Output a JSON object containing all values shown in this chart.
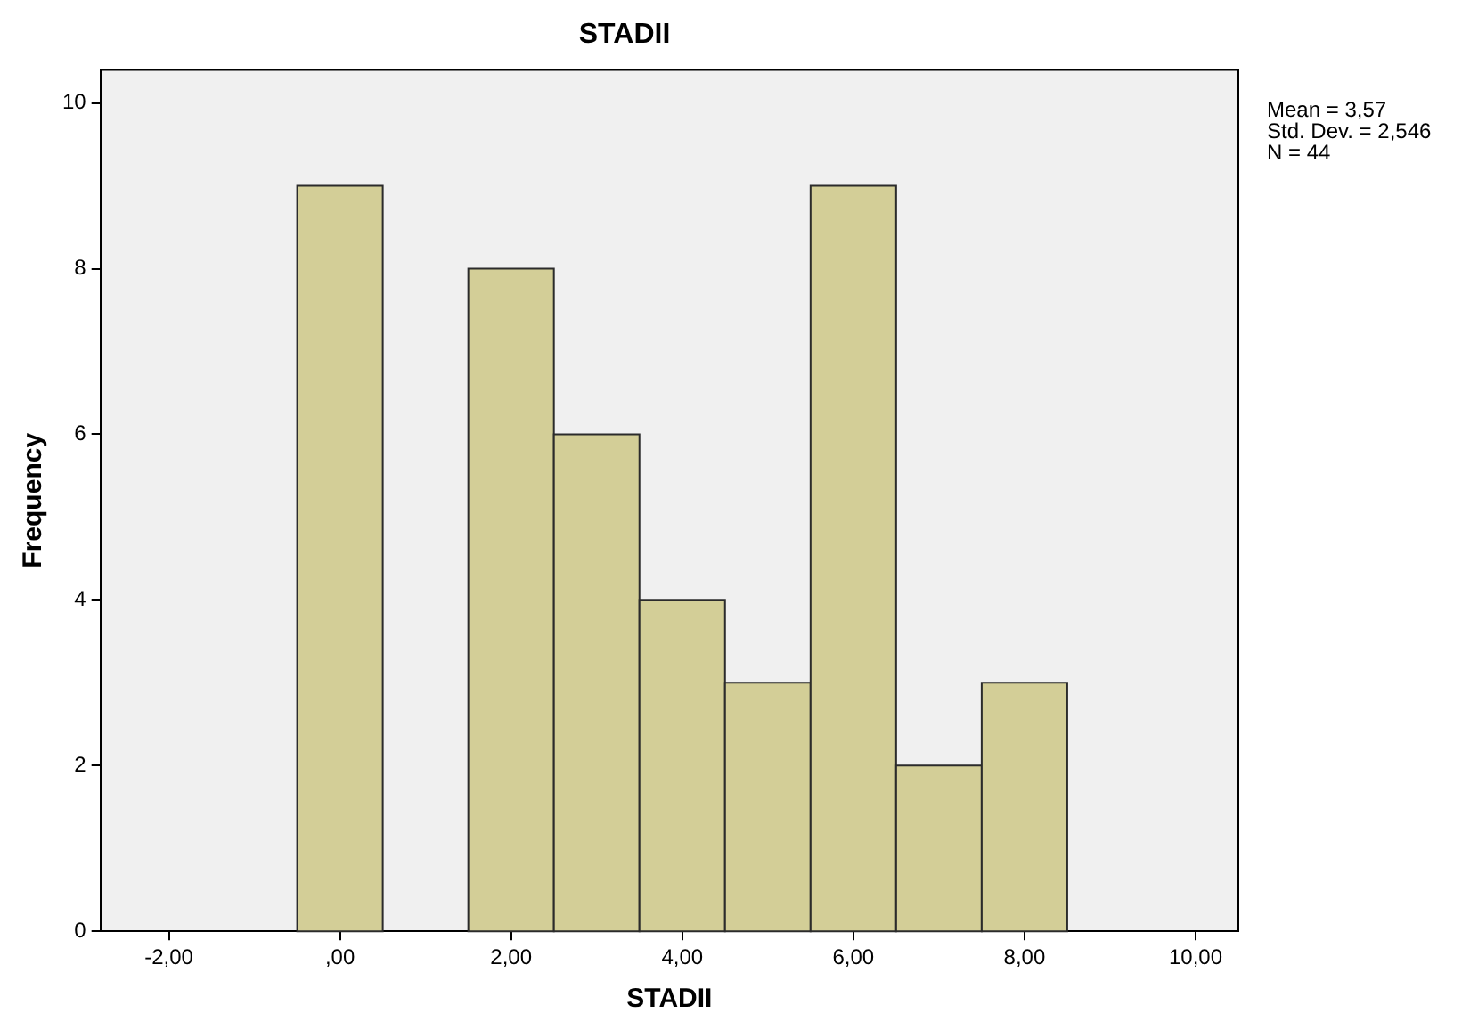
{
  "chart_data": {
    "type": "histogram",
    "title": "STADII",
    "xlabel": "STADII",
    "ylabel": "Frequency",
    "bins": [
      -0.5,
      0.5,
      1.5,
      2.5,
      3.5,
      4.5,
      5.5,
      6.5,
      7.5,
      8.5
    ],
    "values": [
      9,
      0,
      8,
      6,
      4,
      3,
      9,
      2,
      3
    ],
    "color": "#d3ce97",
    "xlim": [
      -2.8,
      10.5
    ],
    "xticks": [
      {
        "value": -2,
        "label": "-2,00"
      },
      {
        "value": 0,
        "label": ",00"
      },
      {
        "value": 2,
        "label": "2,00"
      },
      {
        "value": 4,
        "label": "4,00"
      },
      {
        "value": 6,
        "label": "6,00"
      },
      {
        "value": 8,
        "label": "8,00"
      },
      {
        "value": 10,
        "label": "10,00"
      }
    ],
    "ylim": [
      0,
      10.4
    ],
    "yticks": [
      0,
      2,
      4,
      6,
      8,
      10
    ],
    "grid": false,
    "legend": false,
    "annotations": [
      "Mean = 3,57",
      "Std. Dev. = 2,546",
      "N = 44"
    ]
  }
}
